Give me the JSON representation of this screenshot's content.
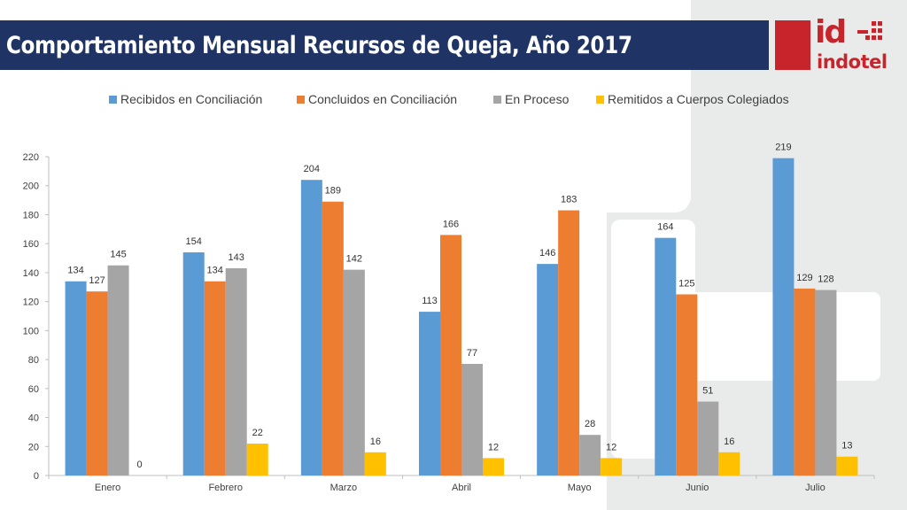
{
  "title": "Comportamiento Mensual Recursos de Queja, Año 2017",
  "logo": {
    "mark": "id",
    "name": "indotel"
  },
  "chart_data": {
    "type": "bar",
    "categories": [
      "Enero",
      "Febrero",
      "Marzo",
      "Abril",
      "Mayo",
      "Junio",
      "Julio"
    ],
    "series": [
      {
        "name": "Recibidos en Conciliación",
        "color": "#5b9bd5",
        "values": [
          134,
          154,
          204,
          113,
          146,
          164,
          219
        ]
      },
      {
        "name": "Concluidos en Conciliación",
        "color": "#ed7d31",
        "values": [
          127,
          134,
          189,
          166,
          183,
          125,
          129
        ]
      },
      {
        "name": "En Proceso",
        "color": "#a5a5a5",
        "values": [
          145,
          143,
          142,
          77,
          28,
          51,
          128
        ]
      },
      {
        "name": "Remitidos a Cuerpos Colegiados",
        "color": "#ffc000",
        "values": [
          0,
          22,
          16,
          12,
          12,
          16,
          13
        ]
      }
    ],
    "yticks": [
      "0",
      "20",
      "40",
      "60",
      "80",
      "100",
      "120",
      "140",
      "160",
      "180",
      "200",
      "220"
    ],
    "ylim": [
      0,
      220
    ],
    "legend": "top",
    "grid": false,
    "xlabel": "",
    "ylabel": ""
  }
}
